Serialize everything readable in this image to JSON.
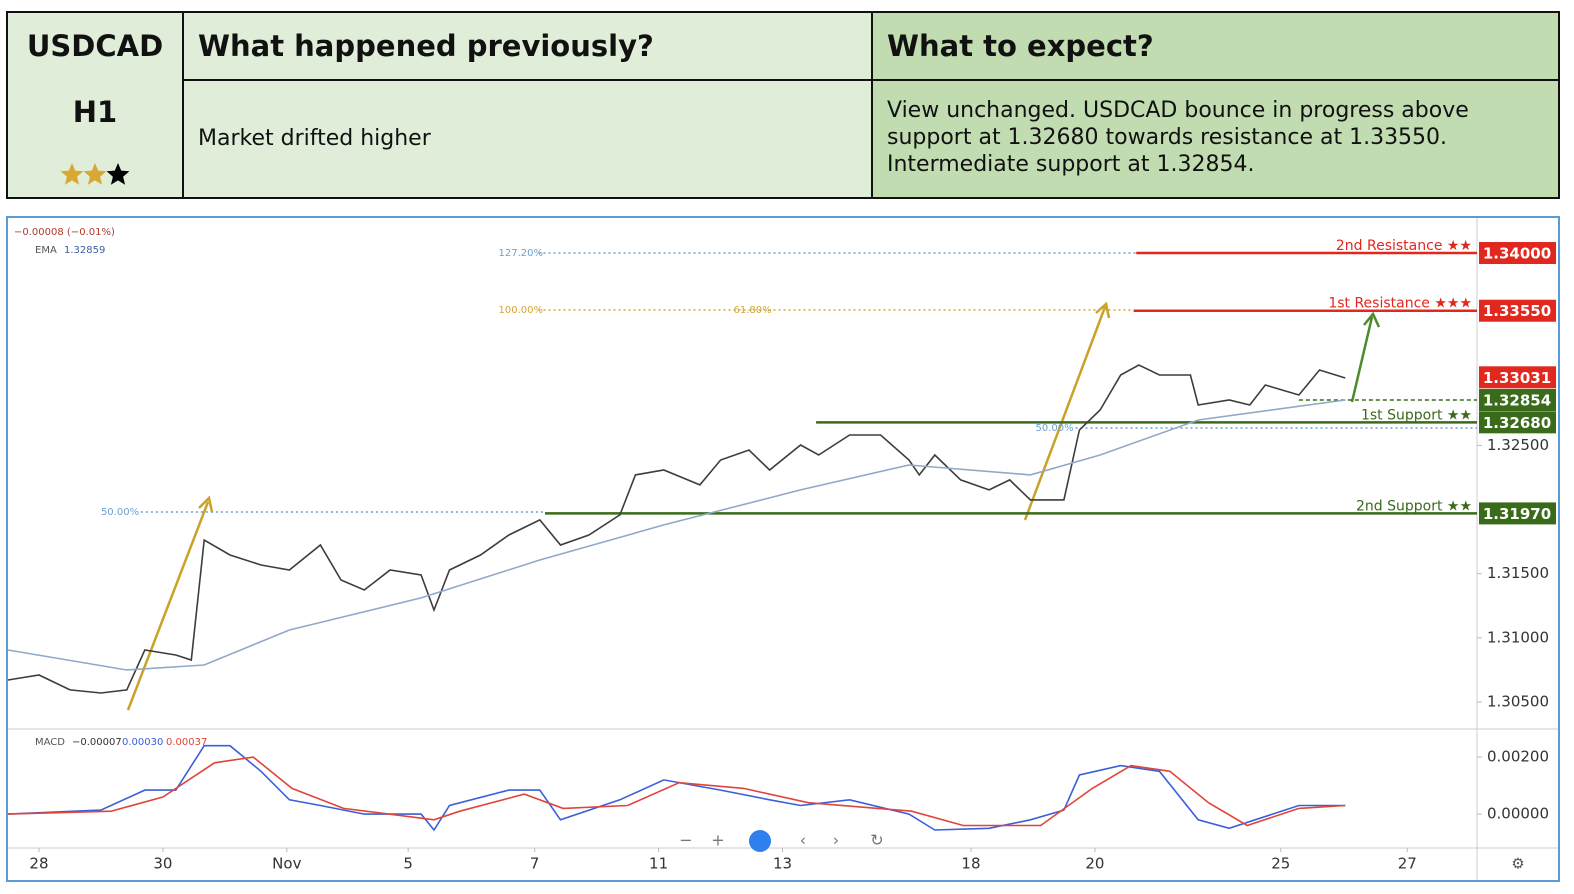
{
  "table": {
    "symbol": "USDCAD",
    "timeframe": "H1",
    "rating": 2,
    "rating_max": 3,
    "previous_title": "What happened previously?",
    "previous_text": "Market drifted higher",
    "expect_title": "What to expect?",
    "expect_text": "View unchanged. USDCAD bounce in progress above support at 1.32680 towards resistance at 1.33550. Intermediate support at 1.32854."
  },
  "chart_data": [
    {
      "type": "line",
      "change": "−0.00008 (−0.01%)",
      "xlim": [
        0,
        569
      ],
      "xticks": [
        {
          "value": 12,
          "label": "28"
        },
        {
          "value": 60,
          "label": "30"
        },
        {
          "value": 108,
          "label": "Nov"
        },
        {
          "value": 155,
          "label": "5"
        },
        {
          "value": 204,
          "label": "7"
        },
        {
          "value": 252,
          "label": "11"
        },
        {
          "value": 300,
          "label": "13"
        },
        {
          "value": 373,
          "label": "18"
        },
        {
          "value": 421,
          "label": "20"
        },
        {
          "value": 493,
          "label": "25"
        },
        {
          "value": 542,
          "label": "27"
        }
      ],
      "ylim": [
        1.30297,
        1.34273
      ],
      "yticks": [
        {
          "value": 1.305,
          "label": "1.30500"
        },
        {
          "value": 1.31,
          "label": "1.31000"
        },
        {
          "value": 1.315,
          "label": "1.31500"
        },
        {
          "value": 1.325,
          "label": "1.32500"
        }
      ],
      "series": [
        {
          "color": "#3d3d3d",
          "x": [
            0,
            12,
            24,
            36,
            46,
            53,
            65,
            71,
            76,
            86,
            98,
            109,
            121,
            129,
            138,
            148,
            160,
            165,
            171,
            183,
            194,
            206,
            214,
            225,
            237,
            243,
            254,
            268,
            276,
            287,
            295,
            307,
            314,
            326,
            338,
            349,
            353,
            359,
            369,
            380,
            388,
            396,
            409,
            415,
            423,
            431,
            438,
            446,
            458,
            461,
            473,
            481,
            487,
            500,
            508,
            518
          ],
          "values": [
            1.30671,
            1.3071,
            1.30594,
            1.3057,
            1.30594,
            1.30905,
            1.30866,
            1.30827,
            1.31763,
            1.31646,
            1.31568,
            1.31529,
            1.31724,
            1.31451,
            1.31373,
            1.31529,
            1.3149,
            1.31217,
            1.31529,
            1.31646,
            1.31802,
            1.31919,
            1.31724,
            1.31802,
            1.31958,
            1.3227,
            1.32308,
            1.32192,
            1.32386,
            1.32464,
            1.32308,
            1.32503,
            1.32425,
            1.32581,
            1.32581,
            1.32386,
            1.3227,
            1.32425,
            1.32231,
            1.32153,
            1.32231,
            1.32075,
            1.32075,
            1.3262,
            1.32776,
            1.33049,
            1.33127,
            1.33049,
            1.33049,
            1.32815,
            1.32854,
            1.32815,
            1.32971,
            1.32893,
            1.33088,
            1.33026
          ]
        },
        {
          "name": "EMA",
          "last": "1.32859",
          "color": "#8fa9c9",
          "x": [
            0,
            46,
            76,
            109,
            160,
            206,
            254,
            307,
            349,
            396,
            423,
            461,
            518
          ],
          "values": [
            1.30905,
            1.30749,
            1.30788,
            1.31061,
            1.31311,
            1.31607,
            1.3188,
            1.32153,
            1.32347,
            1.3227,
            1.32425,
            1.32698,
            1.32854
          ]
        }
      ],
      "levels": [
        {
          "name": "2nd Resistance ★★",
          "value": 1.34,
          "label": "1.34000",
          "color": "#e0281e",
          "from": 437
        },
        {
          "name": "1st Resistance ★★★",
          "value": 1.3355,
          "label": "1.33550",
          "color": "#e0281e",
          "from": 436
        },
        {
          "value": 1.33031,
          "label": "1.33031",
          "color": "#e0281e"
        },
        {
          "value": 1.32854,
          "label": "1.32854",
          "color": "#3a6b1a",
          "from": 500,
          "dashed": true
        },
        {
          "name": "1st Support ★★",
          "value": 1.3268,
          "label": "1.32680",
          "color": "#3a6b1a",
          "from": 313
        },
        {
          "name": "2nd Support ★★",
          "value": 1.3197,
          "label": "1.31970",
          "color": "#3a6b1a",
          "from": 208
        }
      ],
      "fibs": [
        {
          "label": "127.20%",
          "value": 1.34,
          "from": 190,
          "to": 437,
          "color": "#6f9fd0"
        },
        {
          "label": "100.00%",
          "value": 1.33556,
          "from": 190,
          "to": 436,
          "color": "#d4a63a"
        },
        {
          "label": "61.80%",
          "value": 1.33556,
          "from": 281,
          "color": "#d4a63a"
        },
        {
          "label": "50.00%",
          "value": 1.31981,
          "from": 36,
          "to": 208,
          "color": "#6f9fd0"
        },
        {
          "label": "50.00%",
          "value": 1.32636,
          "from": 398,
          "to": 569,
          "color": "#6f9fd0"
        }
      ]
    },
    {
      "type": "line",
      "name": "MACD",
      "readout": [
        "−0.00007",
        "0.00030",
        "0.00037"
      ],
      "ylim": [
        -0.00119,
        0.00295
      ],
      "yticks": [
        {
          "value": 0.002,
          "label": "0.00200"
        },
        {
          "value": 0,
          "label": "0.00000"
        }
      ],
      "series": [
        {
          "color": "#3a5fd9",
          "x": [
            0,
            36,
            53,
            65,
            76,
            86,
            98,
            109,
            121,
            138,
            160,
            165,
            171,
            194,
            206,
            214,
            237,
            254,
            276,
            295,
            307,
            326,
            349,
            359,
            380,
            396,
            409,
            415,
            431,
            446,
            461,
            473,
            500,
            518
          ],
          "values": [
            0,
            0.00014,
            0.00084,
            0.00084,
            0.0024,
            0.0024,
            0.0015,
            0.0005,
            0.0003,
            0,
            0,
            -0.00056,
            0.0003,
            0.00084,
            0.00084,
            -0.0002,
            0.0005,
            0.0012,
            0.00084,
            0.0005,
            0.0003,
            0.0005,
            0,
            -0.00056,
            -0.0005,
            -0.0002,
            0.00014,
            0.00137,
            0.0017,
            0.0015,
            -0.0002,
            -0.0005,
            0.0003,
            0.0003
          ]
        },
        {
          "color": "#e0453a",
          "x": [
            0,
            40,
            60,
            80,
            95,
            110,
            130,
            165,
            175,
            200,
            215,
            240,
            260,
            285,
            310,
            350,
            370,
            400,
            420,
            435,
            450,
            465,
            480,
            500,
            518
          ],
          "values": [
            0,
            0.0001,
            0.0006,
            0.0018,
            0.002,
            0.0009,
            0.0002,
            -0.0002,
            0.0001,
            0.0007,
            0.0002,
            0.0003,
            0.0011,
            0.0009,
            0.0004,
            0.0001,
            -0.0004,
            -0.0004,
            0.0009,
            0.0017,
            0.0015,
            0.0004,
            -0.0004,
            0.0002,
            0.0003
          ]
        }
      ]
    }
  ]
}
